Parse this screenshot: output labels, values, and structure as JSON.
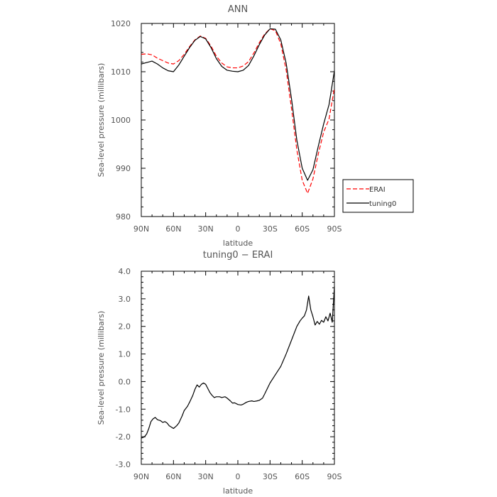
{
  "chart_data": [
    {
      "type": "line",
      "title": "ANN",
      "xlabel": "latitude",
      "ylabel": "Sea-level pressure (millibars)",
      "x_tick_labels": [
        "90N",
        "60N",
        "30N",
        "0",
        "30S",
        "60S",
        "90S"
      ],
      "y_tick_labels": [
        "980",
        "990",
        "1000",
        "1010",
        "1020"
      ],
      "xlim": [
        90,
        -90
      ],
      "ylim": [
        980,
        1020
      ],
      "legend": "right",
      "series": [
        {
          "name": "ERAI",
          "color": "#ff0000",
          "dash": "dashed",
          "x": [
            90,
            85,
            80,
            75,
            70,
            65,
            60,
            55,
            50,
            45,
            40,
            35,
            30,
            25,
            20,
            15,
            10,
            5,
            0,
            -5,
            -10,
            -15,
            -20,
            -25,
            -30,
            -35,
            -40,
            -45,
            -50,
            -55,
            -60,
            -65,
            -70,
            -75,
            -80,
            -85,
            -90
          ],
          "y": [
            1013.6,
            1013.7,
            1013.5,
            1012.8,
            1012.3,
            1011.8,
            1011.6,
            1012.3,
            1013.6,
            1015.2,
            1016.6,
            1017.4,
            1016.9,
            1015.3,
            1013.2,
            1011.8,
            1011.0,
            1010.8,
            1010.8,
            1011.2,
            1012.1,
            1013.9,
            1016.0,
            1017.8,
            1018.9,
            1018.5,
            1015.8,
            1010.4,
            1002.4,
            993.8,
            987.5,
            984.8,
            987.8,
            993.0,
            997.5,
            1000.2,
            1006.6
          ]
        },
        {
          "name": "tuning0",
          "color": "#000000",
          "dash": "solid",
          "x": [
            90,
            85,
            80,
            75,
            70,
            65,
            60,
            55,
            50,
            45,
            40,
            35,
            30,
            25,
            20,
            15,
            10,
            5,
            0,
            -5,
            -10,
            -15,
            -20,
            -25,
            -30,
            -35,
            -40,
            -45,
            -50,
            -55,
            -60,
            -65,
            -70,
            -75,
            -80,
            -85,
            -90
          ],
          "y": [
            1011.6,
            1011.9,
            1012.2,
            1011.6,
            1010.8,
            1010.2,
            1010.0,
            1011.4,
            1013.2,
            1015.0,
            1016.5,
            1017.3,
            1016.8,
            1015.0,
            1012.7,
            1011.1,
            1010.3,
            1010.1,
            1010.0,
            1010.3,
            1011.3,
            1013.3,
            1015.6,
            1017.6,
            1018.9,
            1018.8,
            1016.6,
            1011.8,
            1004.4,
            995.8,
            990.0,
            987.5,
            989.7,
            994.6,
            999.2,
            1003.2,
            1010.2
          ]
        }
      ]
    },
    {
      "type": "line",
      "title": "tuning0 − ERAI",
      "xlabel": "latitude",
      "ylabel": "Sea-level pressure (millibars)",
      "x_tick_labels": [
        "90N",
        "60N",
        "30N",
        "0",
        "30S",
        "60S",
        "90S"
      ],
      "y_tick_labels": [
        "-3.0",
        "-2.0",
        "-1.0",
        "0.0",
        "1.0",
        "2.0",
        "3.0",
        "4.0"
      ],
      "xlim": [
        90,
        -90
      ],
      "ylim": [
        -3.0,
        4.0
      ],
      "series": [
        {
          "color": "#000000",
          "dash": "solid",
          "x": [
            90,
            87,
            85,
            83,
            81,
            79,
            77,
            75,
            72,
            70,
            68,
            66,
            64,
            62,
            60,
            57,
            55,
            52,
            50,
            47,
            45,
            42,
            40,
            38,
            36,
            34,
            32,
            30,
            28,
            26,
            24,
            22,
            20,
            17,
            15,
            12,
            10,
            7,
            5,
            3,
            0,
            -3,
            -5,
            -8,
            -10,
            -13,
            -15,
            -18,
            -20,
            -23,
            -25,
            -30,
            -35,
            -40,
            -45,
            -50,
            -55,
            -58,
            -60,
            -62,
            -64,
            -66,
            -68,
            -70,
            -72,
            -74,
            -76,
            -78,
            -80,
            -82,
            -84,
            -86,
            -88,
            -90
          ],
          "y": [
            -2.05,
            -2.0,
            -1.9,
            -1.7,
            -1.45,
            -1.35,
            -1.3,
            -1.38,
            -1.42,
            -1.48,
            -1.45,
            -1.5,
            -1.6,
            -1.65,
            -1.7,
            -1.6,
            -1.5,
            -1.25,
            -1.05,
            -0.9,
            -0.75,
            -0.5,
            -0.28,
            -0.12,
            -0.2,
            -0.1,
            -0.05,
            -0.1,
            -0.25,
            -0.4,
            -0.5,
            -0.58,
            -0.55,
            -0.55,
            -0.58,
            -0.55,
            -0.6,
            -0.7,
            -0.78,
            -0.77,
            -0.83,
            -0.85,
            -0.82,
            -0.75,
            -0.72,
            -0.7,
            -0.72,
            -0.7,
            -0.68,
            -0.6,
            -0.45,
            -0.05,
            0.25,
            0.55,
            1.0,
            1.5,
            2.0,
            2.2,
            2.3,
            2.38,
            2.6,
            3.1,
            2.6,
            2.35,
            2.05,
            2.18,
            2.08,
            2.22,
            2.15,
            2.35,
            2.2,
            2.48,
            2.15,
            3.45
          ]
        }
      ]
    }
  ],
  "legend_entries": [
    "ERAI",
    "tuning0"
  ]
}
